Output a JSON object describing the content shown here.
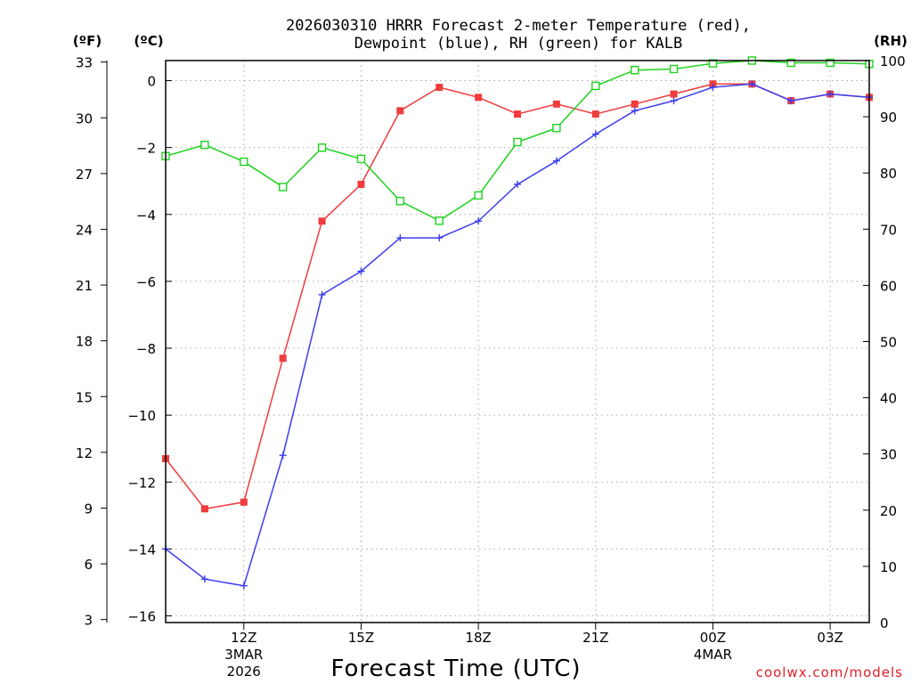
{
  "chart_data": {
    "type": "line",
    "title_lines": [
      "2026030310 HRRR Forecast 2-meter Temperature (red),",
      "Dewpoint (blue), RH (green) for KALB"
    ],
    "xlabel": "Forecast Time (UTC)",
    "credit": "coolwx.com/models",
    "units": {
      "fahrenheit": "(ºF)",
      "celsius": "(ºC)",
      "rh": "(RH)"
    },
    "x_hours": [
      10,
      11,
      12,
      13,
      14,
      15,
      16,
      17,
      18,
      19,
      20,
      21,
      22,
      23,
      24,
      25,
      26,
      27,
      28
    ],
    "xlim": [
      10,
      28
    ],
    "x_ticks": [
      {
        "hour": 12,
        "label": "12Z",
        "sub": [
          "3MAR",
          "2026"
        ]
      },
      {
        "hour": 15,
        "label": "15Z",
        "sub": []
      },
      {
        "hour": 18,
        "label": "18Z",
        "sub": []
      },
      {
        "hour": 21,
        "label": "21Z",
        "sub": []
      },
      {
        "hour": 24,
        "label": "00Z",
        "sub": [
          "4MAR"
        ]
      },
      {
        "hour": 27,
        "label": "03Z",
        "sub": []
      }
    ],
    "celsius_axis": {
      "lim": [
        -16.2,
        0.6
      ],
      "ticks": [
        -16,
        -14,
        -12,
        -10,
        -8,
        -6,
        -4,
        -2,
        0
      ]
    },
    "fahrenheit_ticks": [
      3,
      6,
      9,
      12,
      15,
      18,
      21,
      24,
      27,
      30,
      33
    ],
    "rh_axis": {
      "lim": [
        0,
        100
      ],
      "ticks": [
        0,
        10,
        20,
        30,
        40,
        50,
        60,
        70,
        80,
        90,
        100
      ]
    },
    "series": [
      {
        "name": "Temperature",
        "axis": "celsius",
        "color": "#f03c3c",
        "marker": "filled-square",
        "values": [
          -11.3,
          -12.8,
          -12.6,
          -8.3,
          -4.2,
          -3.1,
          -0.9,
          -0.2,
          -0.5,
          -1.0,
          -0.7,
          -1.0,
          -0.7,
          -0.4,
          -0.1,
          -0.1,
          -0.6,
          -0.4,
          -0.5
        ]
      },
      {
        "name": "Dewpoint",
        "axis": "celsius",
        "color": "#3c3cf0",
        "marker": "plus",
        "values": [
          -14.0,
          -14.9,
          -15.1,
          -11.2,
          -6.4,
          -5.7,
          -4.7,
          -4.7,
          -4.2,
          -3.1,
          -2.4,
          -1.6,
          -0.9,
          -0.6,
          -0.2,
          -0.1,
          -0.6,
          -0.4,
          -0.5
        ]
      },
      {
        "name": "RH",
        "axis": "rh",
        "color": "#1ed21e",
        "marker": "open-square",
        "values": [
          83,
          85,
          82,
          77.5,
          84.5,
          82.5,
          75,
          71.5,
          76,
          85.5,
          88,
          95.5,
          98.3,
          98.5,
          99.5,
          100,
          99.6,
          99.6,
          99.4
        ]
      }
    ]
  }
}
